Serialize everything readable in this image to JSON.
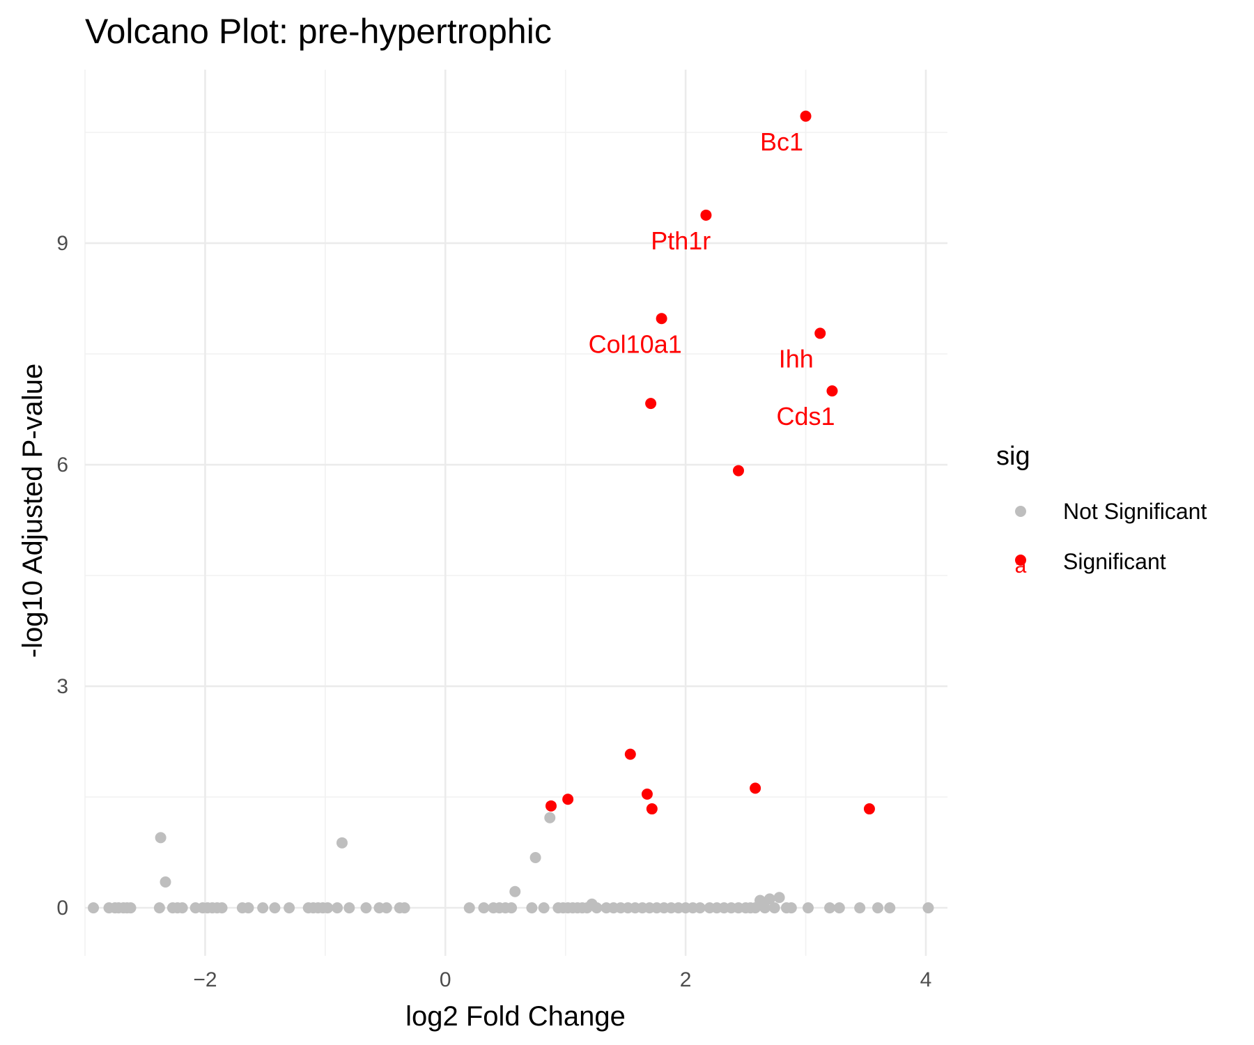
{
  "chart_data": {
    "type": "scatter",
    "title": "Volcano Plot: pre-hypertrophic",
    "xlabel": "log2 Fold Change",
    "ylabel": "-log10 Adjusted P-value",
    "xlim": [
      -3.0,
      4.18
    ],
    "ylim": [
      -0.65,
      11.35
    ],
    "x_ticks": [
      -2,
      0,
      2,
      4
    ],
    "y_ticks": [
      0,
      3,
      6,
      9
    ],
    "grid": true,
    "legend": {
      "title": "sig",
      "position": "right",
      "entries": [
        {
          "name": "Not Significant",
          "color": "#bebebe"
        },
        {
          "name": "Significant",
          "color": "#ff0000",
          "glyph": "a"
        }
      ]
    },
    "series": [
      {
        "name": "Not Significant",
        "color": "#bebebe",
        "points": [
          [
            -2.93,
            0
          ],
          [
            -2.8,
            0
          ],
          [
            -2.75,
            0
          ],
          [
            -2.72,
            0
          ],
          [
            -2.68,
            0
          ],
          [
            -2.65,
            0
          ],
          [
            -2.62,
            0
          ],
          [
            -2.37,
            0.95
          ],
          [
            -2.33,
            0.35
          ],
          [
            -2.38,
            0
          ],
          [
            -2.27,
            0
          ],
          [
            -2.23,
            0
          ],
          [
            -2.19,
            0
          ],
          [
            -2.08,
            0
          ],
          [
            -2.02,
            0
          ],
          [
            -1.98,
            0
          ],
          [
            -1.94,
            0
          ],
          [
            -1.9,
            0
          ],
          [
            -1.86,
            0
          ],
          [
            -1.69,
            0
          ],
          [
            -1.64,
            0
          ],
          [
            -1.52,
            0
          ],
          [
            -1.42,
            0
          ],
          [
            -1.3,
            0
          ],
          [
            -1.14,
            0
          ],
          [
            -1.1,
            0
          ],
          [
            -1.06,
            0
          ],
          [
            -1.02,
            0
          ],
          [
            -0.98,
            0
          ],
          [
            -0.9,
            0
          ],
          [
            -0.86,
            0.88
          ],
          [
            -0.8,
            0
          ],
          [
            -0.66,
            0
          ],
          [
            -0.55,
            0
          ],
          [
            -0.49,
            0
          ],
          [
            -0.38,
            0
          ],
          [
            -0.34,
            0
          ],
          [
            0.2,
            0
          ],
          [
            0.32,
            0
          ],
          [
            0.4,
            0
          ],
          [
            0.45,
            0
          ],
          [
            0.5,
            0
          ],
          [
            0.55,
            0
          ],
          [
            0.58,
            0.22
          ],
          [
            0.72,
            0
          ],
          [
            0.75,
            0.68
          ],
          [
            0.82,
            0
          ],
          [
            0.87,
            1.22
          ],
          [
            0.94,
            0
          ],
          [
            0.98,
            0
          ],
          [
            1.02,
            0
          ],
          [
            1.06,
            0
          ],
          [
            1.1,
            0
          ],
          [
            1.14,
            0
          ],
          [
            1.18,
            0
          ],
          [
            1.22,
            0.05
          ],
          [
            1.26,
            0
          ],
          [
            1.34,
            0
          ],
          [
            1.4,
            0
          ],
          [
            1.46,
            0
          ],
          [
            1.52,
            0
          ],
          [
            1.58,
            0
          ],
          [
            1.64,
            0
          ],
          [
            1.7,
            0
          ],
          [
            1.76,
            0
          ],
          [
            1.82,
            0
          ],
          [
            1.88,
            0
          ],
          [
            1.94,
            0
          ],
          [
            2.0,
            0
          ],
          [
            2.06,
            0
          ],
          [
            2.12,
            0
          ],
          [
            2.2,
            0
          ],
          [
            2.26,
            0
          ],
          [
            2.32,
            0
          ],
          [
            2.38,
            0
          ],
          [
            2.44,
            0
          ],
          [
            2.5,
            0
          ],
          [
            2.54,
            0
          ],
          [
            2.58,
            0
          ],
          [
            2.62,
            0.1
          ],
          [
            2.66,
            0
          ],
          [
            2.7,
            0.12
          ],
          [
            2.74,
            0
          ],
          [
            2.78,
            0.14
          ],
          [
            2.84,
            0
          ],
          [
            2.88,
            0
          ],
          [
            3.02,
            0
          ],
          [
            3.2,
            0
          ],
          [
            3.28,
            0
          ],
          [
            3.45,
            0
          ],
          [
            3.6,
            0
          ],
          [
            3.7,
            0
          ],
          [
            4.02,
            0
          ]
        ]
      },
      {
        "name": "Significant",
        "color": "#ff0000",
        "points": [
          [
            3.0,
            10.72
          ],
          [
            2.17,
            9.38
          ],
          [
            1.8,
            7.98
          ],
          [
            3.12,
            7.78
          ],
          [
            1.71,
            6.83
          ],
          [
            3.22,
            7.0
          ],
          [
            2.44,
            5.92
          ],
          [
            1.54,
            2.08
          ],
          [
            2.58,
            1.62
          ],
          [
            1.68,
            1.54
          ],
          [
            1.02,
            1.47
          ],
          [
            0.88,
            1.38
          ],
          [
            1.72,
            1.34
          ],
          [
            3.53,
            1.34
          ]
        ]
      }
    ],
    "annotations": [
      {
        "text": "Bc1",
        "x": 2.8,
        "y": 10.37,
        "color": "#ff0000"
      },
      {
        "text": "Pth1r",
        "x": 1.96,
        "y": 9.03,
        "color": "#ff0000"
      },
      {
        "text": "Col10a1",
        "x": 1.58,
        "y": 7.63,
        "color": "#ff0000"
      },
      {
        "text": "Ihh",
        "x": 2.92,
        "y": 7.43,
        "color": "#ff0000"
      },
      {
        "text": "Cds1",
        "x": 3.0,
        "y": 6.65,
        "color": "#ff0000"
      }
    ]
  }
}
